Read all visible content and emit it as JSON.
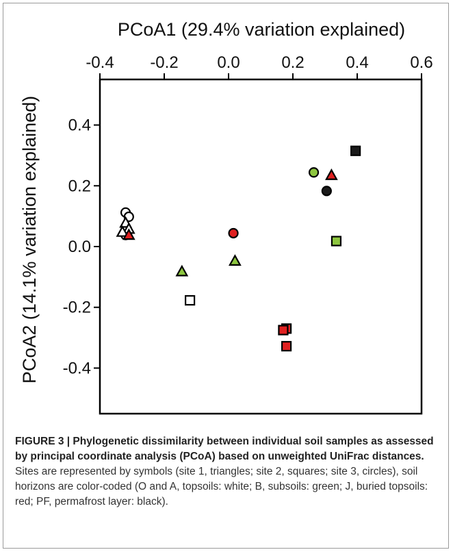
{
  "chart_data": {
    "type": "scatter",
    "xlabel": "PCoA1 (29.4% variation explained)",
    "ylabel": "PCoA2 (14.1% variation explained)",
    "xlim": [
      -0.4,
      0.6
    ],
    "ylim": [
      -0.55,
      0.55
    ],
    "x_ticks": [
      -0.4,
      -0.2,
      0.0,
      0.2,
      0.4,
      0.6
    ],
    "x_tick_labels": [
      "-0.4",
      "-0.2",
      "0.0",
      "0.2",
      "0.4",
      "0.6"
    ],
    "y_ticks": [
      0.4,
      0.2,
      0.0,
      -0.2,
      -0.4
    ],
    "y_tick_labels": [
      "0.4",
      "0.2",
      "0.0",
      "-0.2",
      "-0.4"
    ],
    "x_axis_position": "top",
    "grid": false,
    "colors": {
      "white": "#ffffff",
      "green": "#8dc63f",
      "red": "#e02020",
      "black": "#1a1a1a"
    },
    "points": [
      {
        "x": -0.32,
        "y": 0.112,
        "shape": "circle",
        "color": "white"
      },
      {
        "x": -0.31,
        "y": 0.098,
        "shape": "circle",
        "color": "white"
      },
      {
        "x": -0.32,
        "y": 0.038,
        "shape": "circle",
        "color": "white"
      },
      {
        "x": -0.32,
        "y": 0.078,
        "shape": "triangle",
        "color": "white"
      },
      {
        "x": -0.31,
        "y": 0.058,
        "shape": "triangle",
        "color": "white"
      },
      {
        "x": -0.33,
        "y": 0.048,
        "shape": "triangle",
        "color": "white"
      },
      {
        "x": -0.31,
        "y": 0.038,
        "shape": "triangle",
        "color": "red"
      },
      {
        "x": -0.145,
        "y": -0.082,
        "shape": "triangle",
        "color": "green"
      },
      {
        "x": -0.12,
        "y": -0.177,
        "shape": "square",
        "color": "white"
      },
      {
        "x": 0.015,
        "y": 0.044,
        "shape": "circle",
        "color": "red"
      },
      {
        "x": 0.02,
        "y": -0.047,
        "shape": "triangle",
        "color": "green"
      },
      {
        "x": 0.18,
        "y": -0.27,
        "shape": "square",
        "color": "red"
      },
      {
        "x": 0.17,
        "y": -0.275,
        "shape": "square",
        "color": "red"
      },
      {
        "x": 0.18,
        "y": -0.328,
        "shape": "square",
        "color": "red"
      },
      {
        "x": 0.265,
        "y": 0.244,
        "shape": "circle",
        "color": "green"
      },
      {
        "x": 0.32,
        "y": 0.235,
        "shape": "triangle",
        "color": "red"
      },
      {
        "x": 0.305,
        "y": 0.183,
        "shape": "circle",
        "color": "black"
      },
      {
        "x": 0.395,
        "y": 0.315,
        "shape": "square",
        "color": "black"
      },
      {
        "x": 0.335,
        "y": 0.018,
        "shape": "square",
        "color": "green"
      }
    ]
  },
  "caption": {
    "label": "FIGURE 3 | Phylogenetic dissimilarity between individual soil samples as assessed by principal coordinate analysis (PCoA) based on unweighted UniFrac distances.",
    "text": " Sites are represented by symbols (site 1, triangles; site 2, squares; site 3, circles), soil horizons are color-coded (O and A, topsoils: white; B, subsoils: green; J, buried topsoils: red; PF, permafrost layer: black)."
  }
}
